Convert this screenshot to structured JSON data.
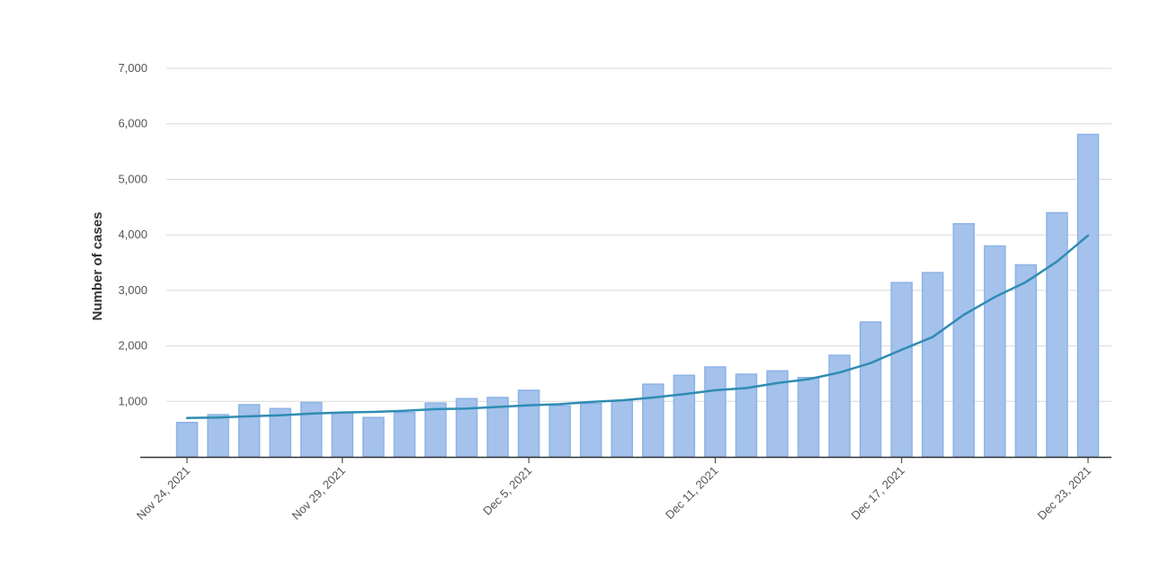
{
  "colors": {
    "bar_fill": "#a4c2ec",
    "bar_stroke": "#8db3e6",
    "line": "#2f8cb3",
    "grid": "#d9d9d9",
    "axis": "#333333"
  },
  "chart_data": {
    "type": "bar",
    "title": "",
    "xlabel": "",
    "ylabel": "Number of cases",
    "ylim": [
      0,
      7000
    ],
    "y_ticks": [
      1000,
      2000,
      3000,
      4000,
      5000,
      6000,
      7000
    ],
    "y_tick_labels": [
      "1,000",
      "2,000",
      "3,000",
      "4,000",
      "5,000",
      "6,000",
      "7,000"
    ],
    "x_tick_labels": [
      {
        "index": 0,
        "label": "Nov 24, 2021"
      },
      {
        "index": 5,
        "label": "Nov 29, 2021"
      },
      {
        "index": 11,
        "label": "Dec 5, 2021"
      },
      {
        "index": 17,
        "label": "Dec 11, 2021"
      },
      {
        "index": 23,
        "label": "Dec 17, 2021"
      },
      {
        "index": 29,
        "label": "Dec 23, 2021"
      }
    ],
    "grid": true,
    "legend": "none",
    "categories": [
      "Nov 24, 2021",
      "Nov 25, 2021",
      "Nov 26, 2021",
      "Nov 27, 2021",
      "Nov 28, 2021",
      "Nov 29, 2021",
      "Nov 30, 2021",
      "Dec 1, 2021",
      "Dec 2, 2021",
      "Dec 3, 2021",
      "Dec 4, 2021",
      "Dec 5, 2021",
      "Dec 6, 2021",
      "Dec 7, 2021",
      "Dec 8, 2021",
      "Dec 9, 2021",
      "Dec 10, 2021",
      "Dec 11, 2021",
      "Dec 12, 2021",
      "Dec 13, 2021",
      "Dec 14, 2021",
      "Dec 15, 2021",
      "Dec 16, 2021",
      "Dec 17, 2021",
      "Dec 18, 2021",
      "Dec 19, 2021",
      "Dec 20, 2021",
      "Dec 21, 2021",
      "Dec 22, 2021",
      "Dec 23, 2021"
    ],
    "series": [
      {
        "type": "bar",
        "values": [
          620,
          760,
          940,
          870,
          980,
          800,
          710,
          800,
          970,
          1050,
          1070,
          1200,
          920,
          960,
          1010,
          1310,
          1470,
          1620,
          1490,
          1550,
          1430,
          1830,
          2430,
          3140,
          3320,
          4200,
          3800,
          3460,
          4400,
          5810
        ]
      },
      {
        "type": "line",
        "values": [
          700,
          710,
          730,
          750,
          780,
          800,
          810,
          830,
          860,
          870,
          900,
          930,
          950,
          990,
          1020,
          1070,
          1130,
          1200,
          1240,
          1330,
          1400,
          1520,
          1690,
          1930,
          2160,
          2560,
          2880,
          3150,
          3520,
          3990
        ]
      }
    ]
  }
}
